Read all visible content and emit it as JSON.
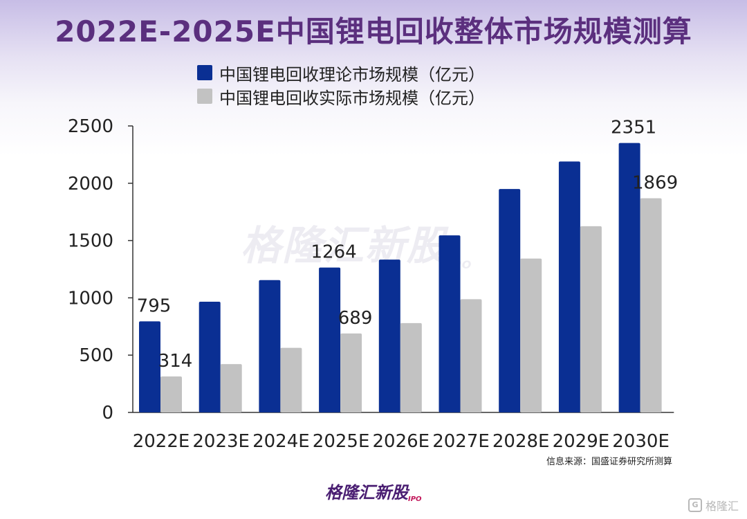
{
  "chart_data": {
    "type": "bar",
    "title": "2022E-2025E中国锂电回收整体市场规模测算",
    "categories": [
      "2022E",
      "2023E",
      "2024E",
      "2025E",
      "2026E",
      "2027E",
      "2028E",
      "2029E",
      "2030E"
    ],
    "series": [
      {
        "name": "中国锂电回收理论市场规模（亿元）",
        "color": "#0a2f93",
        "values": [
          795,
          966,
          1155,
          1264,
          1334,
          1545,
          1950,
          2190,
          2351
        ]
      },
      {
        "name": "中国锂电回收实际市场规模（亿元）",
        "color": "#c2c2c2",
        "values": [
          314,
          422,
          564,
          689,
          780,
          988,
          1343,
          1625,
          1869
        ]
      }
    ],
    "data_labels": [
      {
        "series": 0,
        "index": 0,
        "text": "795"
      },
      {
        "series": 1,
        "index": 0,
        "text": "314"
      },
      {
        "series": 0,
        "index": 3,
        "text": "1264"
      },
      {
        "series": 1,
        "index": 3,
        "text": "689"
      },
      {
        "series": 0,
        "index": 8,
        "text": "2351"
      },
      {
        "series": 1,
        "index": 8,
        "text": "1869"
      }
    ],
    "ylim": [
      0,
      2500
    ],
    "yticks": [
      0,
      500,
      1000,
      1500,
      2000,
      2500
    ],
    "xlabel": "",
    "ylabel": "",
    "grid": false,
    "legend": "top-center"
  },
  "source": "信息来源：国盛证券研究所测算",
  "watermark": {
    "text": "格隆汇新股",
    "sub": "IPO"
  },
  "brand": {
    "text": "格隆汇新股",
    "sub": "IPO"
  },
  "corner_logo": {
    "mark": "G",
    "text": "格隆汇"
  }
}
